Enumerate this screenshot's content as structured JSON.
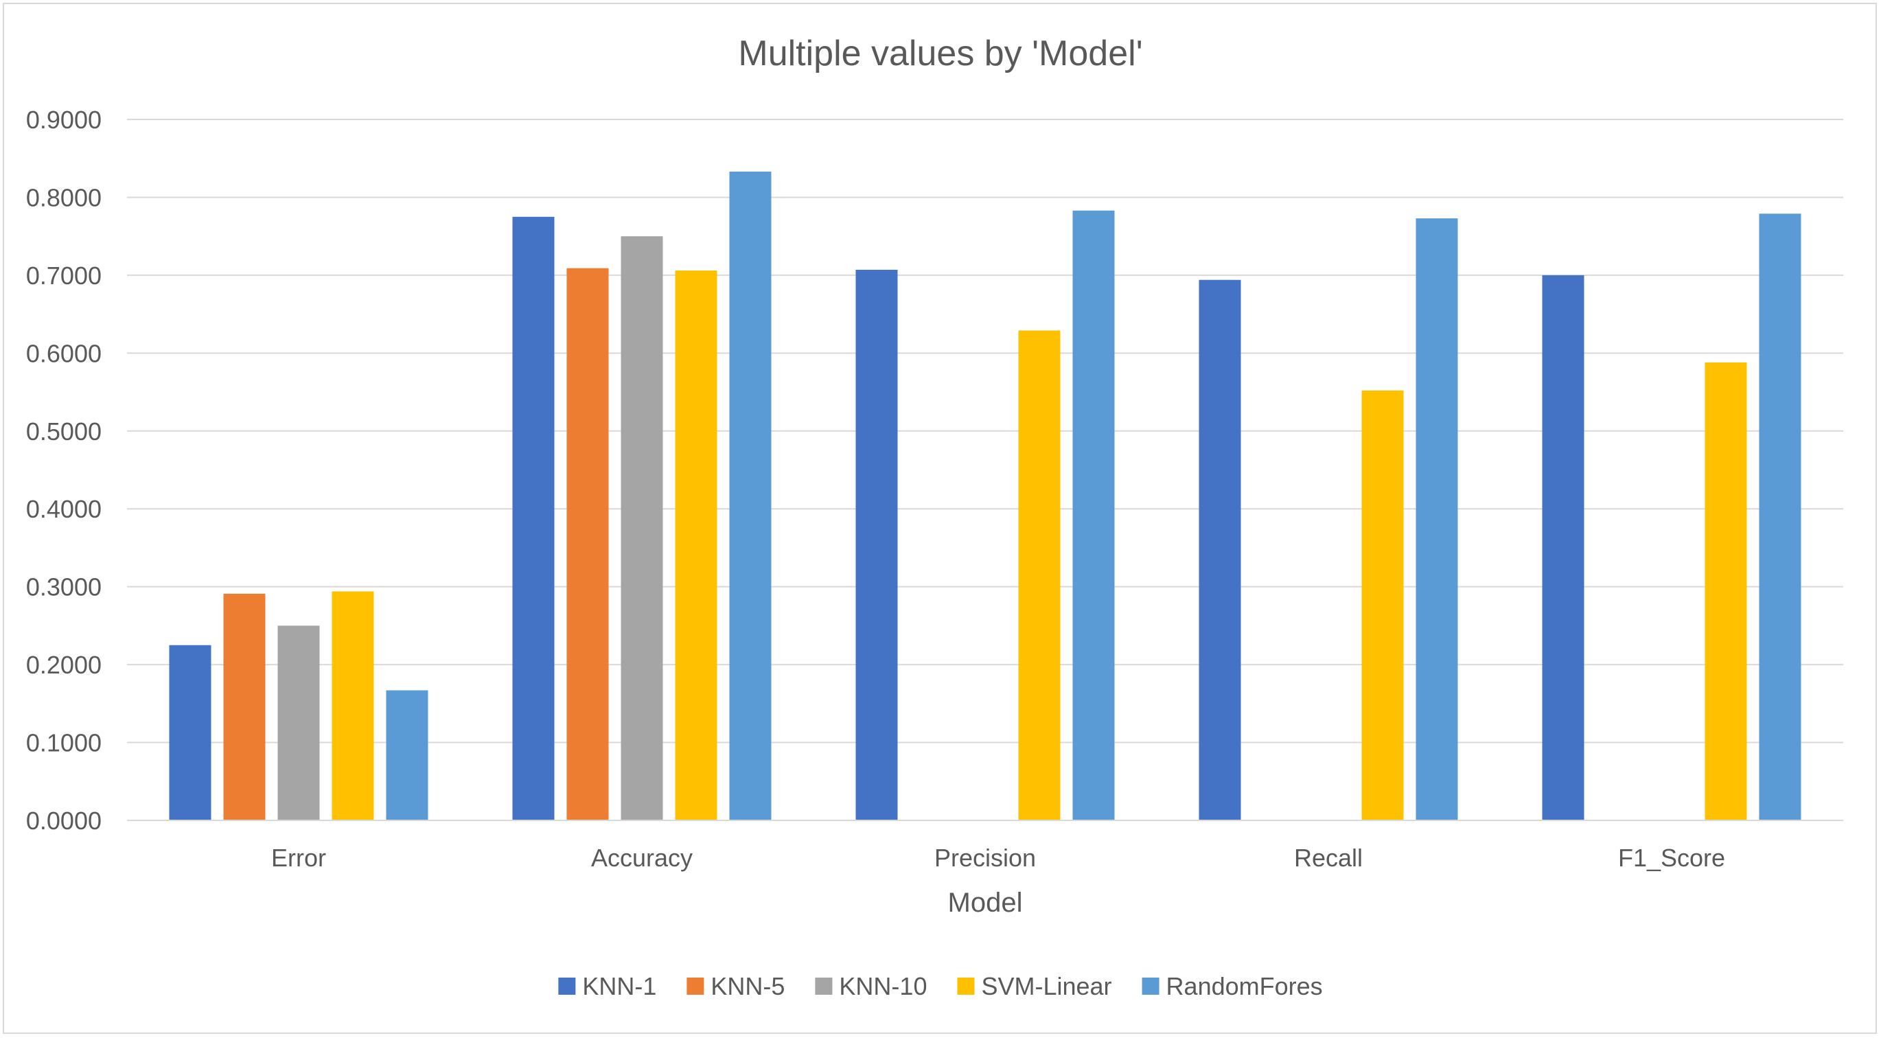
{
  "chart_data": {
    "type": "bar",
    "title": "Multiple values by 'Model'",
    "xlabel": "Model",
    "ylabel": "",
    "ylim": [
      0,
      0.9
    ],
    "yticks": [
      "0.0000",
      "0.1000",
      "0.2000",
      "0.3000",
      "0.4000",
      "0.5000",
      "0.6000",
      "0.7000",
      "0.8000",
      "0.9000"
    ],
    "grid": true,
    "legend_position": "bottom",
    "categories": [
      "Error",
      "Accuracy",
      "Precision",
      "Recall",
      "F1_Score"
    ],
    "series": [
      {
        "name": "KNN-1",
        "color": "#4472C4",
        "values": [
          0.225,
          0.775,
          0.707,
          0.694,
          0.7
        ]
      },
      {
        "name": "KNN-5",
        "color": "#ED7D31",
        "values": [
          0.291,
          0.709,
          0.0,
          0.0,
          0.0
        ]
      },
      {
        "name": "KNN-10",
        "color": "#A5A5A5",
        "values": [
          0.25,
          0.75,
          0.0,
          0.0,
          0.0
        ]
      },
      {
        "name": "SVM-Linear",
        "color": "#FFC000",
        "values": [
          0.294,
          0.706,
          0.629,
          0.552,
          0.588
        ]
      },
      {
        "name": "RandomFores",
        "color": "#5B9BD5",
        "values": [
          0.167,
          0.833,
          0.783,
          0.773,
          0.779
        ]
      }
    ]
  }
}
